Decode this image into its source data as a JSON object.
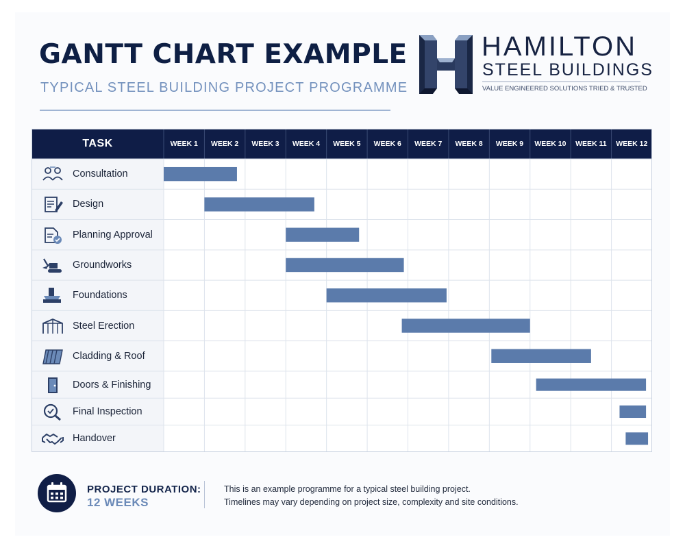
{
  "header": {
    "title": "GANTT CHART EXAMPLE",
    "subtitle": "TYPICAL STEEL BUILDING PROJECT PROGRAMME"
  },
  "brand": {
    "name": "HAMILTON",
    "sub": "STEEL BUILDINGS",
    "tagline": "VALUE ENGINEERED SOLUTIONS TRIED & TRUSTED",
    "logo_icon": "h-monogram-icon"
  },
  "colors": {
    "header_bg": "#0f1d47",
    "bar": "#5b7bab",
    "grid": "#dde3ec",
    "accent": "#6b8ab8"
  },
  "chart_data": {
    "type": "bar",
    "orientation": "horizontal-gantt",
    "task_header": "TASK",
    "weeks": [
      "WEEK 1",
      "WEEK 2",
      "WEEK 3",
      "WEEK 4",
      "WEEK 5",
      "WEEK 6",
      "WEEK 7",
      "WEEK 8",
      "WEEK 9",
      "WEEK 10",
      "WEEK 11",
      "WEEK 12"
    ],
    "tasks": [
      {
        "name": "Consultation",
        "icon": "consultation-people-icon",
        "start": 0.0,
        "end": 1.8
      },
      {
        "name": "Design",
        "icon": "design-document-icon",
        "start": 1.0,
        "end": 3.7
      },
      {
        "name": "Planning Approval",
        "icon": "approval-document-icon",
        "start": 3.0,
        "end": 4.8
      },
      {
        "name": "Groundworks",
        "icon": "excavator-icon",
        "start": 3.0,
        "end": 5.9
      },
      {
        "name": "Foundations",
        "icon": "foundation-block-icon",
        "start": 4.0,
        "end": 6.95
      },
      {
        "name": "Steel Erection",
        "icon": "steel-frame-icon",
        "start": 5.85,
        "end": 9.0
      },
      {
        "name": "Cladding & Roof",
        "icon": "cladding-panel-icon",
        "start": 8.05,
        "end": 10.5
      },
      {
        "name": "Doors & Finishing",
        "icon": "door-icon",
        "start": 9.15,
        "end": 11.85
      },
      {
        "name": "Final Inspection",
        "icon": "magnifier-check-icon",
        "start": 11.2,
        "end": 11.85
      },
      {
        "name": "Handover",
        "icon": "handshake-icon",
        "start": 11.35,
        "end": 11.9
      }
    ],
    "xlim": [
      0,
      12
    ],
    "grid": true
  },
  "footer": {
    "icon": "calendar-icon",
    "duration_label": "PROJECT DURATION:",
    "duration_value": "12 WEEKS",
    "note_line1": "This is an example programme for a typical steel building project.",
    "note_line2": "Timelines may vary depending on project size, complexity and site conditions."
  }
}
